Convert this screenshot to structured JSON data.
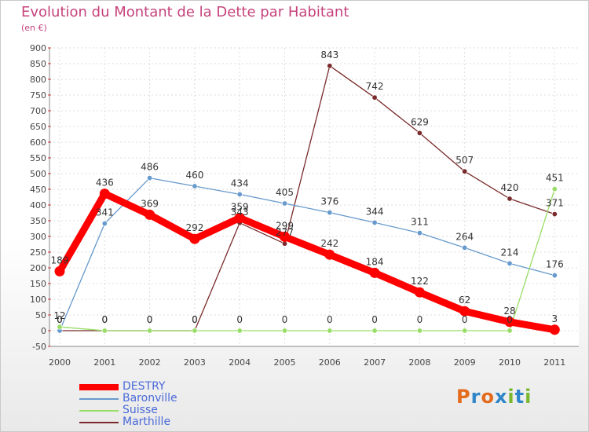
{
  "chart": {
    "title": "Evolution du Montant de la Dette par Habitant",
    "subtitle": "(en €)"
  },
  "brand": {
    "letters": [
      "P",
      "r",
      "o",
      "x",
      "i",
      "t",
      "i"
    ],
    "colors": [
      "#e46a1c",
      "#2e86c8",
      "#e46a1c",
      "#2e86c8",
      "#7ab82f",
      "#2e86c8",
      "#7ab82f"
    ]
  },
  "legend": [
    {
      "name": "DESTRY",
      "color": "#ff0000"
    },
    {
      "name": "Baronville",
      "color": "#6699cc"
    },
    {
      "name": "Suisse",
      "color": "#99dd66"
    },
    {
      "name": "Marthille",
      "color": "#7a2a2a"
    }
  ],
  "chart_data": {
    "type": "line",
    "title": "Evolution du Montant de la Dette par Habitant",
    "subtitle": "(en €)",
    "x": [
      "2000",
      "2001",
      "2002",
      "2003",
      "2004",
      "2005",
      "2006",
      "2007",
      "2008",
      "2009",
      "2010",
      "2011"
    ],
    "ylim": [
      -50,
      900
    ],
    "yticks": [
      -50,
      0,
      50,
      100,
      150,
      200,
      250,
      300,
      350,
      400,
      450,
      500,
      550,
      600,
      650,
      700,
      750,
      800,
      850,
      900
    ],
    "grid": true,
    "legend_position": "bottom-left",
    "series": [
      {
        "name": "DESTRY",
        "color": "#ff0000",
        "values": [
          189,
          436,
          369,
          292,
          359,
          299,
          242,
          184,
          122,
          62,
          28,
          3
        ],
        "labels": [
          "189",
          "436",
          "369",
          "292",
          "359",
          "299",
          "242",
          "184",
          "122",
          "62",
          "28",
          "3"
        ]
      },
      {
        "name": "Baronville",
        "color": "#6699cc",
        "values": [
          0,
          341,
          486,
          460,
          434,
          405,
          376,
          344,
          311,
          264,
          214,
          176
        ],
        "labels": [
          "0",
          "341",
          "486",
          "460",
          "434",
          "405",
          "376",
          "344",
          "311",
          "264",
          "214",
          "176"
        ]
      },
      {
        "name": "Suisse",
        "color": "#99dd66",
        "values": [
          12,
          0,
          0,
          0,
          0,
          0,
          0,
          0,
          0,
          0,
          0,
          451
        ],
        "labels": [
          "12",
          "0",
          "0",
          "0",
          "0",
          "0",
          "0",
          "0",
          "0",
          "0",
          "0",
          "451"
        ]
      },
      {
        "name": "Marthille",
        "color": "#7a2a2a",
        "values": [
          0,
          0,
          0,
          0,
          343,
          277,
          843,
          742,
          629,
          507,
          420,
          371
        ],
        "labels": [
          "0",
          "0",
          "0",
          "0",
          "343",
          "277",
          "843",
          "742",
          "629",
          "507",
          "420",
          "371"
        ]
      }
    ]
  }
}
